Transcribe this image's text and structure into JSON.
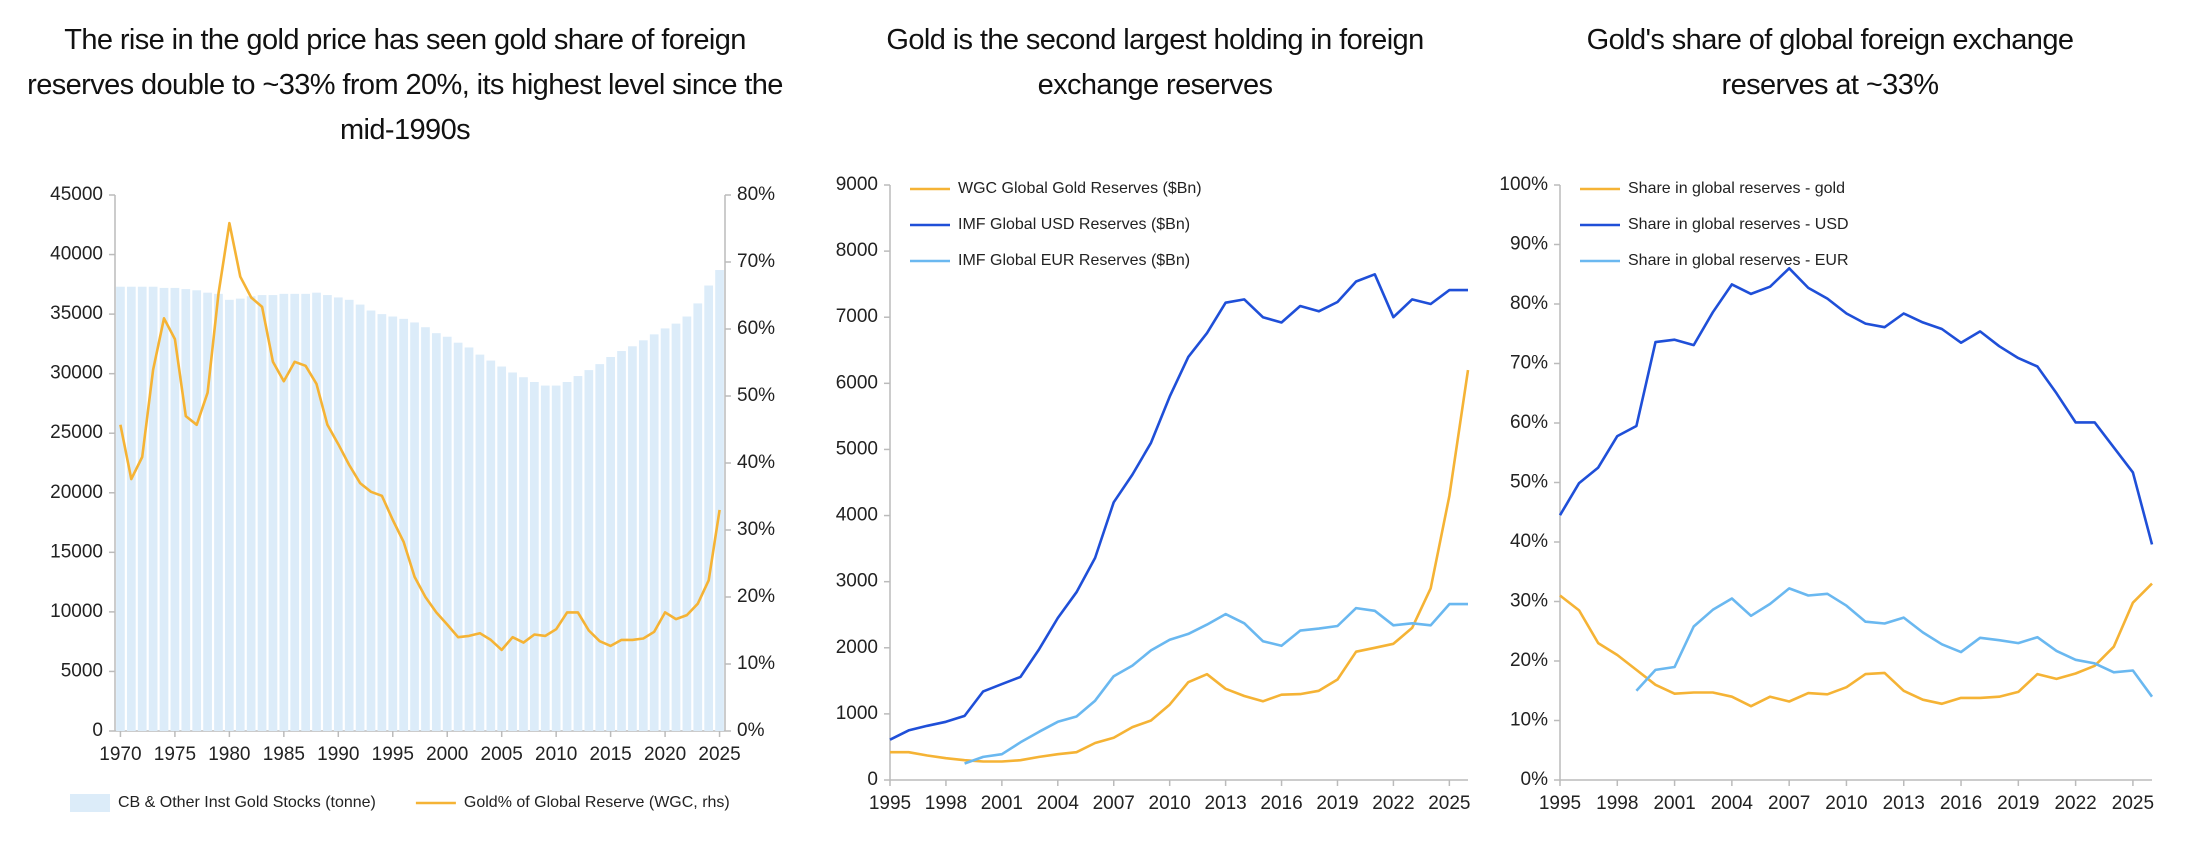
{
  "chart_data": [
    {
      "type": "combo",
      "title": "The rise in the gold price has seen gold share of foreign reserves double to ~33% from 20%, its highest level since the mid-1990s",
      "x": [
        1970,
        1971,
        1972,
        1973,
        1974,
        1975,
        1976,
        1977,
        1978,
        1979,
        1980,
        1981,
        1982,
        1983,
        1984,
        1985,
        1986,
        1987,
        1988,
        1989,
        1990,
        1991,
        1992,
        1993,
        1994,
        1995,
        1996,
        1997,
        1998,
        1999,
        2000,
        2001,
        2002,
        2003,
        2004,
        2005,
        2006,
        2007,
        2008,
        2009,
        2010,
        2011,
        2012,
        2013,
        2014,
        2015,
        2016,
        2017,
        2018,
        2019,
        2020,
        2021,
        2022,
        2023,
        2024,
        2025
      ],
      "xlim": [
        1969.5,
        2025.5
      ],
      "xticks": [
        1970,
        1975,
        1980,
        1985,
        1990,
        1995,
        2000,
        2005,
        2010,
        2015,
        2020,
        2025
      ],
      "ylim": [
        0,
        45000
      ],
      "yticks": [
        0,
        5000,
        10000,
        15000,
        20000,
        25000,
        30000,
        35000,
        40000,
        45000
      ],
      "y2lim": [
        0,
        80
      ],
      "y2ticks": [
        {
          "value": 0,
          "label": "0%"
        },
        {
          "value": 10,
          "label": "10%"
        },
        {
          "value": 20,
          "label": "20%"
        },
        {
          "value": 30,
          "label": "30%"
        },
        {
          "value": 40,
          "label": "40%"
        },
        {
          "value": 50,
          "label": "50%"
        },
        {
          "value": 60,
          "label": "60%"
        },
        {
          "value": 70,
          "label": "70%"
        },
        {
          "value": 80,
          "label": "80%"
        }
      ],
      "legend": "bottom",
      "series": [
        {
          "name": "CB & Other Inst Gold Stocks (tonne)",
          "type": "bar",
          "color": "#dcecf9",
          "values": [
            37300,
            37300,
            37300,
            37300,
            37200,
            37200,
            37100,
            37000,
            36800,
            36700,
            36200,
            36300,
            36500,
            36600,
            36600,
            36700,
            36700,
            36700,
            36800,
            36600,
            36400,
            36200,
            35800,
            35300,
            35000,
            34800,
            34600,
            34300,
            33900,
            33400,
            33100,
            32600,
            32200,
            31600,
            31100,
            30600,
            30100,
            29700,
            29300,
            29000,
            29000,
            29300,
            29800,
            30300,
            30800,
            31400,
            31900,
            32300,
            32800,
            33300,
            33800,
            34200,
            34800,
            35900,
            37400,
            38700
          ]
        },
        {
          "name": "Gold% of Global Reserve (WGC, rhs)",
          "type": "line",
          "axis": "y2",
          "color": "#f5b335",
          "values": [
            45.7,
            37.6,
            40.9,
            53.9,
            61.6,
            58.5,
            47,
            45.7,
            50.5,
            65.3,
            75.8,
            67.8,
            64.7,
            63.3,
            55.1,
            52.2,
            55.1,
            54.5,
            51.8,
            45.7,
            42.8,
            39.7,
            37,
            35.7,
            35.1,
            31.5,
            28.2,
            23,
            20,
            17.7,
            15.9,
            14,
            14.2,
            14.6,
            13.6,
            12.1,
            14,
            13.2,
            14.4,
            14.2,
            15.2,
            17.7,
            17.7,
            15,
            13.4,
            12.7,
            13.6,
            13.6,
            13.8,
            14.8,
            17.7,
            16.7,
            17.3,
            19,
            22.5,
            33
          ]
        }
      ]
    },
    {
      "type": "line",
      "title": "Gold is the second largest holding in foreign exchange reserves",
      "x": [
        1995,
        1996,
        1997,
        1998,
        1999,
        2000,
        2001,
        2002,
        2003,
        2004,
        2005,
        2006,
        2007,
        2008,
        2009,
        2010,
        2011,
        2012,
        2013,
        2014,
        2015,
        2016,
        2017,
        2018,
        2019,
        2020,
        2021,
        2022,
        2023,
        2024,
        2025,
        2026
      ],
      "xlim": [
        1995,
        2026
      ],
      "xticks": [
        1995,
        1998,
        2001,
        2004,
        2007,
        2010,
        2013,
        2016,
        2019,
        2022,
        2025
      ],
      "ylim": [
        0,
        9000
      ],
      "yticks": [
        0,
        1000,
        2000,
        3000,
        4000,
        5000,
        6000,
        7000,
        8000,
        9000
      ],
      "legend": "upper left",
      "series": [
        {
          "name": "WGC Global Gold Reserves ($Bn)",
          "color": "#f5b335",
          "values": [
            420,
            420,
            370,
            330,
            300,
            280,
            280,
            300,
            350,
            390,
            420,
            560,
            640,
            800,
            900,
            1140,
            1480,
            1600,
            1380,
            1270,
            1190,
            1290,
            1300,
            1350,
            1520,
            1940,
            2000,
            2060,
            2300,
            2900,
            4300,
            6200
          ]
        },
        {
          "name": "IMF Global USD Reserves ($Bn)",
          "color": "#1f4fd8",
          "values": [
            610,
            750,
            820,
            880,
            970,
            1340,
            1450,
            1560,
            1980,
            2450,
            2840,
            3360,
            4200,
            4620,
            5100,
            5800,
            6400,
            6760,
            7220,
            7270,
            7000,
            6920,
            7170,
            7090,
            7230,
            7540,
            7650,
            7000,
            7270,
            7200,
            7410,
            7410
          ]
        },
        {
          "name": "IMF Global EUR Reserves ($Bn)",
          "color": "#6ab8f0",
          "values": [
            null,
            null,
            null,
            null,
            250,
            350,
            390,
            570,
            730,
            880,
            960,
            1200,
            1570,
            1730,
            1960,
            2120,
            2210,
            2350,
            2510,
            2370,
            2100,
            2030,
            2260,
            2290,
            2330,
            2600,
            2560,
            2340,
            2370,
            2340,
            2660,
            2660
          ]
        }
      ]
    },
    {
      "type": "line",
      "title": "Gold's share of global foreign exchange reserves at ~33%",
      "x": [
        1995,
        1996,
        1997,
        1998,
        1999,
        2000,
        2001,
        2002,
        2003,
        2004,
        2005,
        2006,
        2007,
        2008,
        2009,
        2010,
        2011,
        2012,
        2013,
        2014,
        2015,
        2016,
        2017,
        2018,
        2019,
        2020,
        2021,
        2022,
        2023,
        2024,
        2025,
        2026
      ],
      "xlim": [
        1995,
        2026
      ],
      "xticks": [
        1995,
        1998,
        2001,
        2004,
        2007,
        2010,
        2013,
        2016,
        2019,
        2022,
        2025
      ],
      "ylim": [
        0,
        100
      ],
      "yticks": [
        {
          "value": 0,
          "label": "0%"
        },
        {
          "value": 10,
          "label": "10%"
        },
        {
          "value": 20,
          "label": "20%"
        },
        {
          "value": 30,
          "label": "30%"
        },
        {
          "value": 40,
          "label": "40%"
        },
        {
          "value": 50,
          "label": "50%"
        },
        {
          "value": 60,
          "label": "60%"
        },
        {
          "value": 70,
          "label": "70%"
        },
        {
          "value": 80,
          "label": "80%"
        },
        {
          "value": 90,
          "label": "90%"
        },
        {
          "value": 100,
          "label": "100%"
        }
      ],
      "legend": "upper left",
      "series": [
        {
          "name": "Share in global reserves - gold",
          "color": "#f5b335",
          "values": [
            31,
            28.5,
            23,
            21,
            18.5,
            16,
            14.5,
            14.7,
            14.7,
            14,
            12.4,
            14,
            13.2,
            14.6,
            14.4,
            15.6,
            17.8,
            18,
            15,
            13.5,
            12.8,
            13.8,
            13.8,
            14,
            14.8,
            17.8,
            17,
            17.9,
            19.2,
            22.4,
            29.8,
            33
          ]
        },
        {
          "name": "Share in global reserves - USD",
          "color": "#1f4fd8",
          "values": [
            44.5,
            49.9,
            52.5,
            57.8,
            59.5,
            73.6,
            74,
            73.1,
            78.6,
            83.3,
            81.7,
            82.9,
            86,
            82.7,
            80.9,
            78.4,
            76.7,
            76.1,
            78.4,
            76.9,
            75.8,
            73.5,
            75.4,
            72.9,
            70.9,
            69.5,
            65,
            60.1,
            60.1,
            55.9,
            51.7,
            39.6
          ]
        },
        {
          "name": "Share in global reserves - EUR",
          "color": "#6ab8f0",
          "values": [
            null,
            null,
            null,
            null,
            15,
            18.5,
            19,
            25.8,
            28.6,
            30.5,
            27.6,
            29.6,
            32.2,
            31,
            31.3,
            29.3,
            26.6,
            26.3,
            27.3,
            24.8,
            22.8,
            21.5,
            23.9,
            23.5,
            23,
            24,
            21.7,
            20.2,
            19.6,
            18.1,
            18.4,
            14
          ]
        }
      ]
    }
  ]
}
